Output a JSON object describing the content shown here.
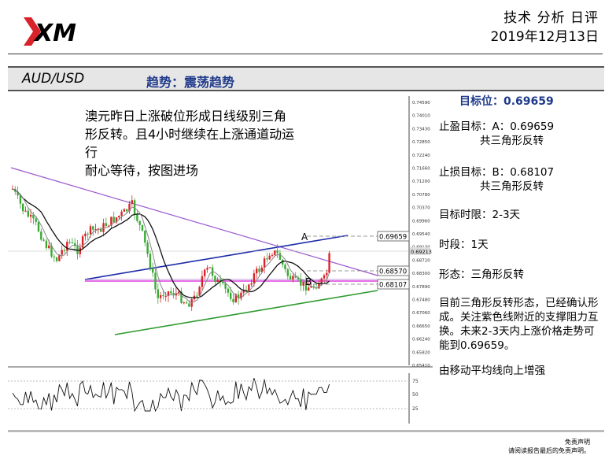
{
  "header": {
    "brand": "XM",
    "title": "技术 分析 日评",
    "date": "2019年12月13日"
  },
  "bar": {
    "pair": "AUD/USD",
    "trend": "趋势：震荡趋势"
  },
  "chart_text": {
    "line1": "澳元昨日上涨破位形成日线级别三角",
    "line2": "形反转。且4小时继续在上涨通道动运",
    "line3": "行",
    "line4": "耐心等待，按图进场"
  },
  "chart": {
    "label_a": "A",
    "label_b": "B",
    "price_axis": [
      "0.74590",
      "0.74010",
      "0.73430",
      "0.72850",
      "0.72240",
      "0.71660",
      "0.71200",
      "0.70780",
      "0.70370",
      "0.69960",
      "0.69540",
      "0.69130",
      "0.68720",
      "0.68300",
      "0.67890",
      "0.67480",
      "0.67060",
      "0.66650",
      "0.66240",
      "0.65820",
      "0.65410"
    ],
    "levels": {
      "a": "0.69659",
      "cur": "0.69213",
      "mid": "0.68570",
      "b": "0.68107"
    },
    "osc_axis": [
      "75",
      "50",
      "25"
    ],
    "colors": {
      "up": "#d9232a",
      "down": "#3aaa35",
      "channel_top": "#1b2aa8",
      "support": "#2e9a2e",
      "purple": "#9b59d0",
      "magenta": "#e040e0"
    }
  },
  "right": {
    "target": "目标位：0.69659",
    "tp_line1": "止盈目标：A：0.69659",
    "tp_line2": "共三角形反转",
    "sl_line1": "止损目标：B：0.68107",
    "sl_line2": "共三角形反转",
    "timeframe": "目标时限：2-3天",
    "period": "时段：1天",
    "pattern": "形态：三角形反转",
    "analysis": "目前三角形反转形态，已经确认形成。关注紫色线附近的支撑阻力互换。未来2-3天内上涨价格走势可能到0.69659。",
    "ma_note": "由移动平均线向上增强"
  },
  "footer": {
    "line1": "免责声明",
    "line2": "请阅读报告最后的免责声明。"
  }
}
